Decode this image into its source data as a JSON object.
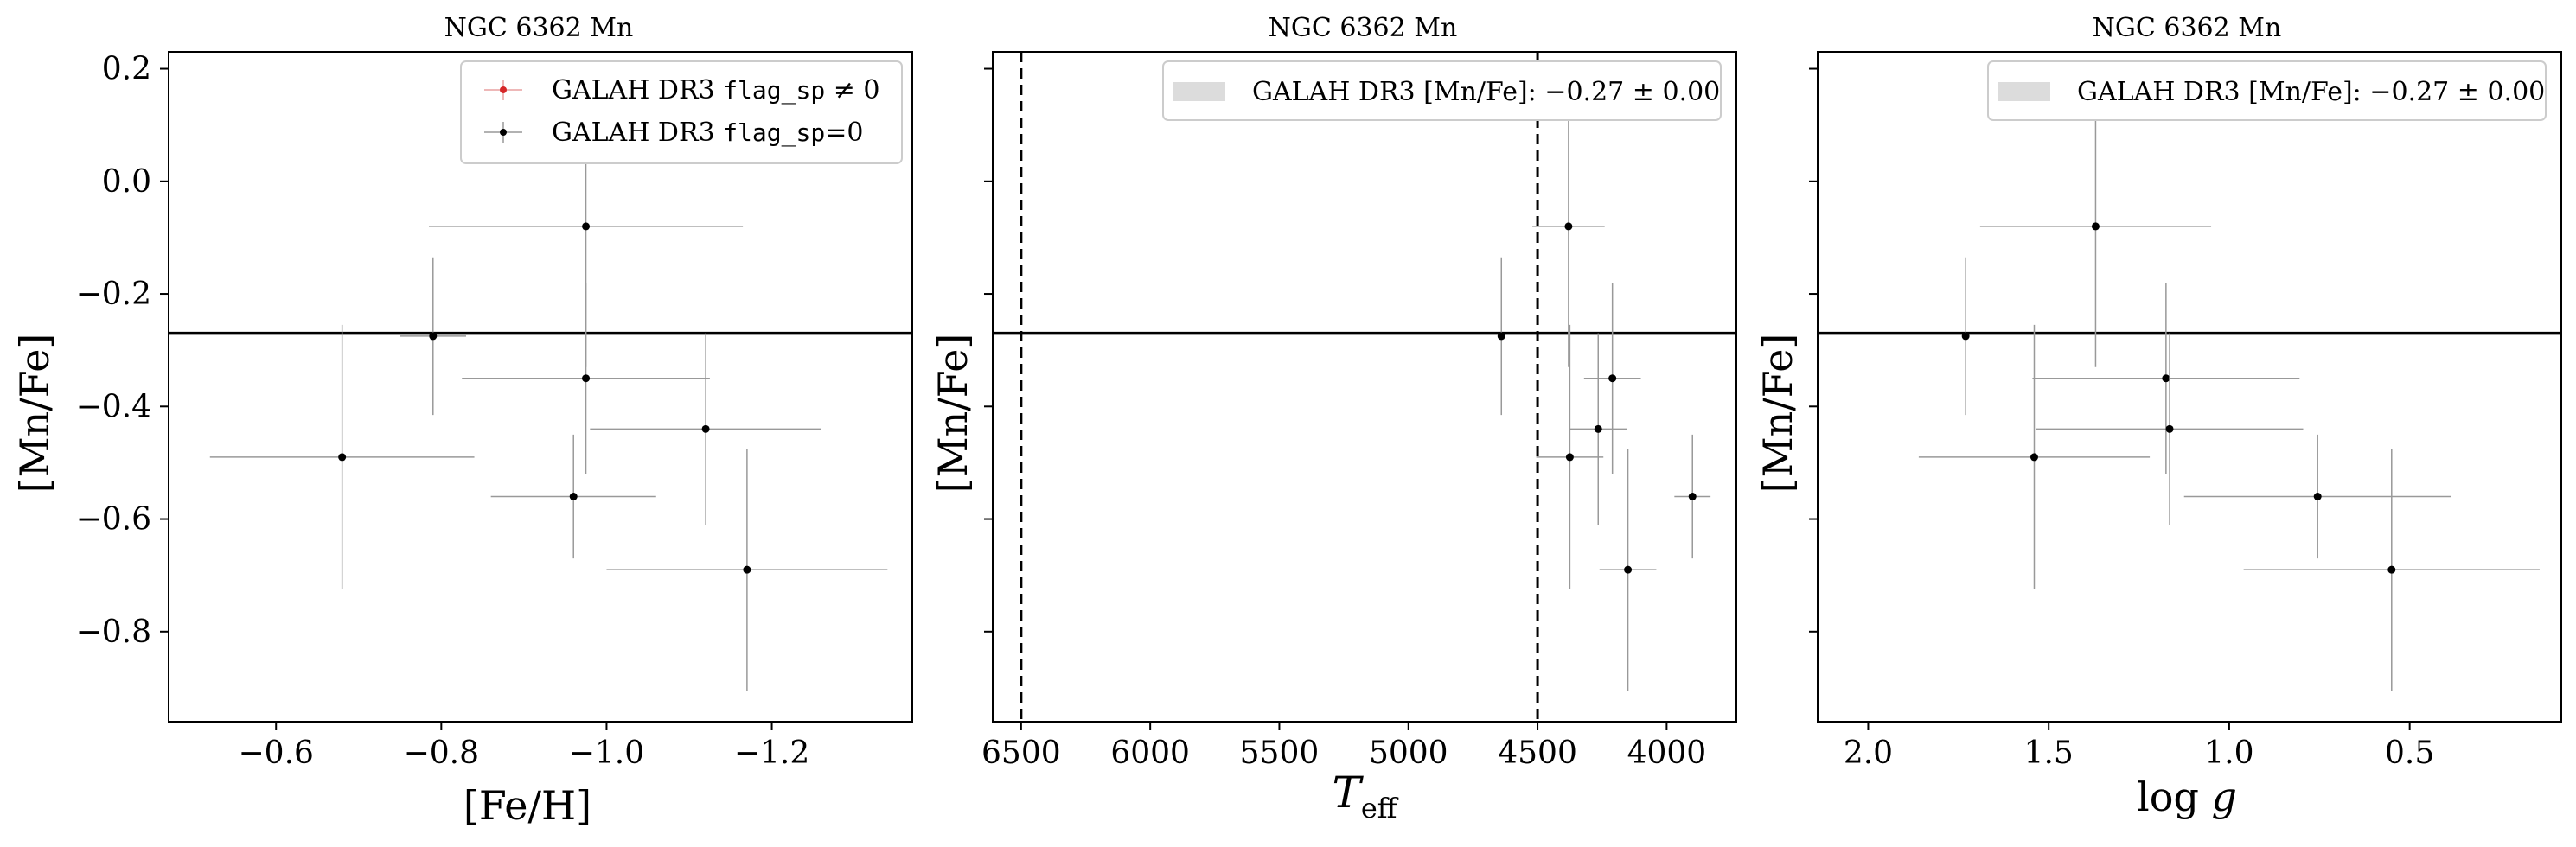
{
  "chart_data": [
    {
      "type": "scatter",
      "title": "NGC 6362 Mn",
      "xlabel": "[Fe/H]",
      "ylabel": "[Mn/Fe]",
      "xlim": [
        -0.47,
        -1.37
      ],
      "ylim": [
        -0.96,
        0.23
      ],
      "x_inverted": true,
      "xticks": [
        -0.6,
        -0.8,
        -1.0,
        -1.2
      ],
      "xtick_labels": [
        "−0.6",
        "−0.8",
        "−1.0",
        "−1.2"
      ],
      "yticks": [
        0.2,
        0.0,
        -0.2,
        -0.4,
        -0.6,
        -0.8
      ],
      "ytick_labels": [
        "0.2",
        "0.0",
        "−0.2",
        "−0.4",
        "−0.6",
        "−0.8"
      ],
      "hline": -0.27,
      "legend_position": "top-right",
      "legend": [
        {
          "label": "GALAH DR3 flag_sp ≠ 0",
          "color": "#d62728"
        },
        {
          "label": "GALAH DR3 flag_sp=0",
          "color": "#000000"
        }
      ],
      "series": [
        {
          "name": "GALAH DR3 flag_sp=0",
          "color": "#000000",
          "points": [
            {
              "x": -0.68,
              "y": -0.49,
              "xerr": 0.16,
              "yerr": 0.235
            },
            {
              "x": -0.79,
              "y": -0.275,
              "xerr": 0.04,
              "yerr": 0.14
            },
            {
              "x": -0.975,
              "y": -0.08,
              "xerr": 0.19,
              "yerr": 0.25
            },
            {
              "x": -0.975,
              "y": -0.35,
              "xerr": 0.15,
              "yerr": 0.17
            },
            {
              "x": -0.96,
              "y": -0.56,
              "xerr": 0.1,
              "yerr": 0.11
            },
            {
              "x": -1.12,
              "y": -0.44,
              "xerr": 0.14,
              "yerr": 0.17
            },
            {
              "x": -1.17,
              "y": -0.69,
              "xerr": 0.17,
              "yerr": 0.215
            }
          ]
        }
      ]
    },
    {
      "type": "scatter",
      "title": "NGC 6362 Mn",
      "xlabel": "T_eff",
      "ylabel": "[Mn/Fe]",
      "xlim": [
        6610,
        3730
      ],
      "ylim": [
        -0.96,
        0.23
      ],
      "x_inverted": true,
      "xticks": [
        6500,
        6000,
        5500,
        5000,
        4500,
        4000
      ],
      "xtick_labels": [
        "6500",
        "6000",
        "5500",
        "5000",
        "4500",
        "4000"
      ],
      "yticks": [
        0.2,
        0.0,
        -0.2,
        -0.4,
        -0.6,
        -0.8
      ],
      "ytick_labels": [
        "",
        "",
        "",
        "",
        "",
        ""
      ],
      "hline": -0.27,
      "vlines": [
        6500,
        4500
      ],
      "legend_position": "top-right",
      "legend": [
        {
          "label": "GALAH DR3 [Mn/Fe]: −0.27 ± 0.00",
          "color": "#dcdcdc"
        }
      ],
      "series": [
        {
          "name": "GALAH DR3 flag_sp=0",
          "color": "#000000",
          "points": [
            {
              "x": 4640,
              "y": -0.275,
              "xerr": 0,
              "yerr": 0.14
            },
            {
              "x": 4380,
              "y": -0.08,
              "xerr": 140,
              "yerr": 0.25
            },
            {
              "x": 4210,
              "y": -0.35,
              "xerr": 110,
              "yerr": 0.17
            },
            {
              "x": 4265,
              "y": -0.44,
              "xerr": 110,
              "yerr": 0.17
            },
            {
              "x": 4375,
              "y": -0.49,
              "xerr": 130,
              "yerr": 0.235
            },
            {
              "x": 4150,
              "y": -0.69,
              "xerr": 110,
              "yerr": 0.215
            },
            {
              "x": 3900,
              "y": -0.56,
              "xerr": 70,
              "yerr": 0.11
            }
          ]
        }
      ]
    },
    {
      "type": "scatter",
      "title": "NGC 6362 Mn",
      "xlabel": "log g",
      "ylabel": "[Mn/Fe]",
      "xlim": [
        2.14,
        0.08
      ],
      "ylim": [
        -0.96,
        0.23
      ],
      "x_inverted": true,
      "xticks": [
        2.0,
        1.5,
        1.0,
        0.5
      ],
      "xtick_labels": [
        "2.0",
        "1.5",
        "1.0",
        "0.5"
      ],
      "yticks": [
        0.2,
        0.0,
        -0.2,
        -0.4,
        -0.6,
        -0.8
      ],
      "ytick_labels": [
        "",
        "",
        "",
        "",
        "",
        ""
      ],
      "hline": -0.27,
      "legend_position": "top-right",
      "legend": [
        {
          "label": "GALAH DR3 [Mn/Fe]: −0.27 ± 0.00",
          "color": "#dcdcdc"
        }
      ],
      "series": [
        {
          "name": "GALAH DR3 flag_sp=0",
          "color": "#000000",
          "points": [
            {
              "x": 1.73,
              "y": -0.275,
              "xerr": 0,
              "yerr": 0.14
            },
            {
              "x": 1.37,
              "y": -0.08,
              "xerr": 0.32,
              "yerr": 0.25
            },
            {
              "x": 1.175,
              "y": -0.35,
              "xerr": 0.37,
              "yerr": 0.17
            },
            {
              "x": 1.165,
              "y": -0.44,
              "xerr": 0.37,
              "yerr": 0.17
            },
            {
              "x": 1.54,
              "y": -0.49,
              "xerr": 0.32,
              "yerr": 0.235
            },
            {
              "x": 0.755,
              "y": -0.56,
              "xerr": 0.37,
              "yerr": 0.11
            },
            {
              "x": 0.55,
              "y": -0.69,
              "xerr": 0.41,
              "yerr": 0.215
            }
          ]
        }
      ]
    }
  ]
}
